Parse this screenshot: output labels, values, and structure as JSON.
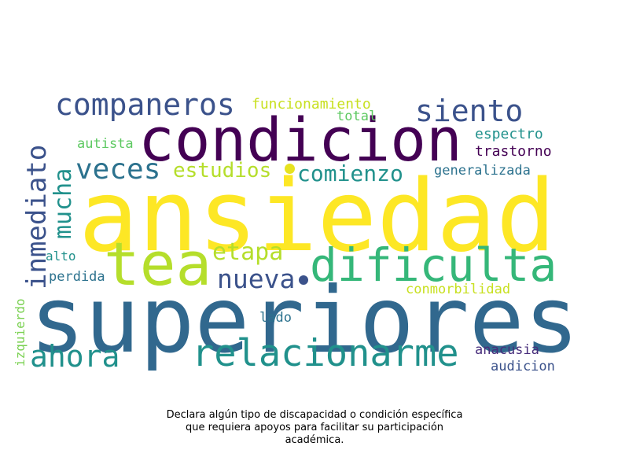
{
  "words": {
    "ansiedad": "ansiedad",
    "superiores": "superiores",
    "condicion": "condicion",
    "tea": "tea",
    "dificulta": "dificulta",
    "relacionarme": "relacionarme",
    "companeros": "companeros",
    "siento": "siento",
    "inmediato": "inmediato",
    "mucha": "mucha",
    "veces": "veces",
    "estudios": "estudios",
    "comienzo": "comienzo",
    "ahora": "ahora",
    "nueva": "nueva",
    "etapa": "etapa",
    "funcionamiento": "funcionamiento",
    "total": "total",
    "espectro": "espectro",
    "trastorno": "trastorno",
    "generalizada": "generalizada",
    "autista": "autista",
    "alto": "alto",
    "perdida": "perdida",
    "conmorbilidad": "conmorbilidad",
    "izquierdo": "izquierdo",
    "lado": "lado",
    "anacusia": "anacusia",
    "audicion": "audicion"
  },
  "caption": {
    "line1": "Declara algún tipo de discapacidad o condición específica",
    "line2": "que requiera apoyos para facilitar su participación",
    "line3": "académica."
  },
  "colors": {
    "yellow": "#fde725",
    "lime": "#b5de2b",
    "green": "#5ec962",
    "teal_green": "#35b779",
    "teal": "#21918c",
    "blue_teal": "#2c728e",
    "blue": "#3b528b",
    "indigo": "#472d7b",
    "dark_purple": "#440154"
  }
}
